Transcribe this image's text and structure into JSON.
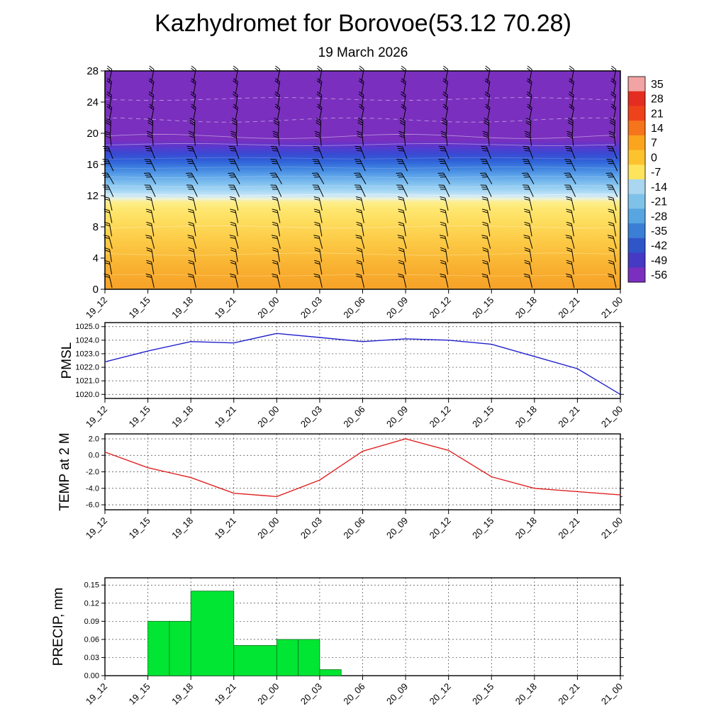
{
  "title": "Kazhydromet for Borovoe(53.12 70.28)",
  "subtitle": "19 March 2026",
  "time_labels": [
    "19_12",
    "19_15",
    "19_18",
    "19_21",
    "20_00",
    "20_03",
    "20_06",
    "20_09",
    "20_12",
    "20_15",
    "20_18",
    "20_21",
    "21_00"
  ],
  "colors": {
    "pmsl_line": "#2121cd",
    "temp_line": "#e02222",
    "precip_bar": "#00e632",
    "grid": "#444444",
    "axis": "#000000"
  },
  "chart_data": [
    {
      "type": "heatmap",
      "name": "time-height-section",
      "ylim": [
        0,
        28
      ],
      "yticks": [
        {
          "label": "28",
          "value": 28
        },
        {
          "label": "24",
          "value": 24
        },
        {
          "label": "20",
          "value": 20
        },
        {
          "label": "16",
          "value": 16
        },
        {
          "label": "12",
          "value": 12
        },
        {
          "label": "8",
          "value": 8
        },
        {
          "label": "4",
          "value": 4
        },
        {
          "label": "0",
          "value": 0
        }
      ],
      "gradient_stops": [
        {
          "y": 28,
          "color": "#7a2fbe"
        },
        {
          "y": 19.2,
          "color": "#7a2fbe"
        },
        {
          "y": 18.3,
          "color": "#5b38cd"
        },
        {
          "y": 17.4,
          "color": "#3a49d2"
        },
        {
          "y": 16.5,
          "color": "#2f5fd8"
        },
        {
          "y": 15.5,
          "color": "#3f83e0"
        },
        {
          "y": 14.5,
          "color": "#5fa5e9"
        },
        {
          "y": 13.5,
          "color": "#84c3ef"
        },
        {
          "y": 12.6,
          "color": "#a8d8f4"
        },
        {
          "y": 12.0,
          "color": "#c9e7f7"
        },
        {
          "y": 11.6,
          "color": "#eef3d8"
        },
        {
          "y": 11.2,
          "color": "#fdee8e"
        },
        {
          "y": 10.4,
          "color": "#fee873"
        },
        {
          "y": 9.0,
          "color": "#fedf60"
        },
        {
          "y": 6.0,
          "color": "#fcc944"
        },
        {
          "y": 3.0,
          "color": "#f9b232"
        },
        {
          "y": 0,
          "color": "#f6a228"
        }
      ],
      "contour_lines": [
        {
          "y": 24.4,
          "color": "#ffffff",
          "opacity": 0.5,
          "dash": "6,5",
          "amp": 2
        },
        {
          "y": 21.7,
          "color": "#ffffff",
          "opacity": 0.5,
          "dash": "6,5",
          "amp": 3
        },
        {
          "y": 19.6,
          "color": "#ffffff",
          "opacity": 0.45,
          "dash": "",
          "amp": 3
        },
        {
          "y": 18.55,
          "color": "#ffffff",
          "opacity": 0.4,
          "dash": "",
          "amp": 1.5
        },
        {
          "y": 16.8,
          "color": "#ffffff",
          "opacity": 0.2,
          "dash": "",
          "amp": 1
        },
        {
          "y": 15.6,
          "color": "#ffffff",
          "opacity": 0.2,
          "dash": "",
          "amp": 1
        },
        {
          "y": 14.4,
          "color": "#ffffff",
          "opacity": 0.22,
          "dash": "",
          "amp": 1
        },
        {
          "y": 13.2,
          "color": "#ffffff",
          "opacity": 0.25,
          "dash": "",
          "amp": 1
        },
        {
          "y": 12.1,
          "color": "#ffffff",
          "opacity": 0.5,
          "dash": "",
          "amp": 1
        },
        {
          "y": 8.0,
          "color": "#fff3b8",
          "opacity": 0.55,
          "dash": "",
          "amp": 1.5
        },
        {
          "y": 4.5,
          "color": "#ffe9a0",
          "opacity": 0.5,
          "dash": "",
          "amp": 1.5
        },
        {
          "y": 1.8,
          "color": "#ffdf8e",
          "opacity": 0.5,
          "dash": "",
          "amp": 1
        }
      ],
      "wind_barbs": {
        "levels": [
          1.0,
          2.7,
          4.3,
          6.0,
          7.6,
          9.3,
          10.9,
          12.6,
          14.2,
          15.9,
          17.5,
          19.2,
          20.8,
          22.5,
          24.1,
          25.8,
          27.4
        ],
        "angles": [
          -10,
          -10,
          -12,
          -14,
          -12,
          -10,
          -14,
          -22,
          -30,
          -28,
          -20,
          -8,
          4,
          10,
          12,
          10,
          8
        ],
        "feathers": [
          2,
          2,
          2,
          2,
          2,
          2,
          2,
          3,
          3,
          3,
          3,
          3,
          3,
          2,
          2,
          2,
          2
        ]
      },
      "colorbar": {
        "labels": [
          "35",
          "28",
          "21",
          "14",
          "7",
          "0",
          "-7",
          "-14",
          "-21",
          "-28",
          "-35",
          "-42",
          "-49",
          "-56"
        ],
        "colors": [
          "#f2a3a3",
          "#e42d20",
          "#ee421b",
          "#f5741c",
          "#fba41e",
          "#fdc32f",
          "#fee45c",
          "#aad6ef",
          "#7fc2e9",
          "#57a5e1",
          "#3b7ed6",
          "#2f55c9",
          "#4639c3",
          "#7a2fbe"
        ]
      }
    },
    {
      "type": "line",
      "name": "pmsl",
      "ylabel": "PMSL",
      "ylim": [
        1019.7,
        1025.3
      ],
      "yticks": [
        {
          "label": "1025.0",
          "value": 1025
        },
        {
          "label": "1024.0",
          "value": 1024
        },
        {
          "label": "1023.0",
          "value": 1023
        },
        {
          "label": "1022.0",
          "value": 1022
        },
        {
          "label": "1021.0",
          "value": 1021
        },
        {
          "label": "1020.0",
          "value": 1020
        }
      ],
      "values": [
        1022.4,
        1023.2,
        1023.9,
        1023.8,
        1024.5,
        1024.2,
        1023.9,
        1024.1,
        1024.0,
        1023.7,
        1022.8,
        1021.9,
        1020.0
      ]
    },
    {
      "type": "line",
      "name": "temp-2m",
      "ylabel": "TEMP at 2 M",
      "ylim": [
        -6.6,
        2.6
      ],
      "yticks": [
        {
          "label": "2.0",
          "value": 2
        },
        {
          "label": "0.0",
          "value": 0
        },
        {
          "label": "-2.0",
          "value": -2
        },
        {
          "label": "-4.0",
          "value": -4
        },
        {
          "label": "-6.0",
          "value": -6
        }
      ],
      "values": [
        0.4,
        -1.5,
        -2.7,
        -4.6,
        -5.0,
        -3.0,
        0.5,
        2.0,
        0.6,
        -2.6,
        -4.0,
        -4.4,
        -4.8
      ]
    },
    {
      "type": "bar",
      "name": "precip",
      "ylabel": "PRECIP, mm",
      "ylim": [
        0,
        0.162
      ],
      "x_hours_span": 36,
      "yticks": [
        {
          "label": "0.15",
          "value": 0.15
        },
        {
          "label": "0.12",
          "value": 0.12
        },
        {
          "label": "0.09",
          "value": 0.09
        },
        {
          "label": "0.06",
          "value": 0.06
        },
        {
          "label": "0.03",
          "value": 0.03
        },
        {
          "label": "0.00",
          "value": 0
        }
      ],
      "bars": [
        {
          "start": 3,
          "end": 4.5,
          "value": 0.09
        },
        {
          "start": 4.5,
          "end": 6,
          "value": 0.09
        },
        {
          "start": 6,
          "end": 9,
          "value": 0.14
        },
        {
          "start": 9,
          "end": 12,
          "value": 0.05
        },
        {
          "start": 12,
          "end": 13.5,
          "value": 0.06
        },
        {
          "start": 13.5,
          "end": 15,
          "value": 0.06
        },
        {
          "start": 15,
          "end": 16.5,
          "value": 0.01
        }
      ]
    }
  ]
}
